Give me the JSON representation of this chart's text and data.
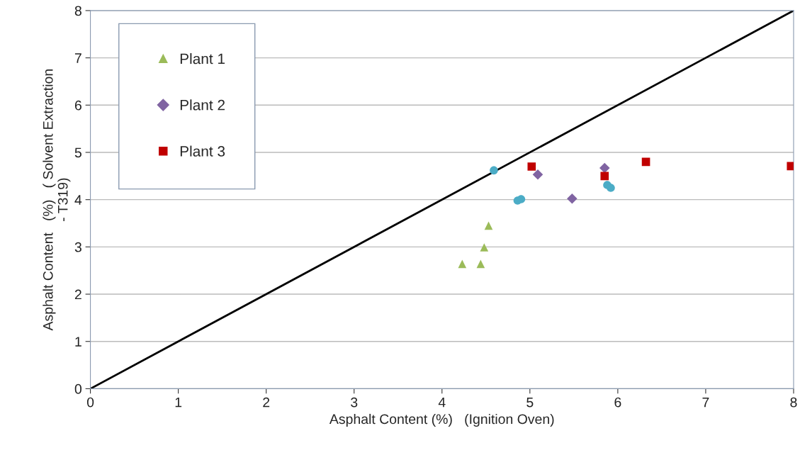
{
  "chart_data": {
    "type": "scatter",
    "xlabel": "Asphalt Content (%)   (Ignition Oven)",
    "ylabel": "Asphalt Content   (%)   ( Solvent Extraction\n- T319)",
    "xlim": [
      0,
      8
    ],
    "ylim": [
      0,
      8
    ],
    "xticks": [
      0,
      1,
      2,
      3,
      4,
      5,
      6,
      7,
      8
    ],
    "yticks": [
      0,
      1,
      2,
      3,
      4,
      5,
      6,
      7,
      8
    ],
    "grid": "y",
    "legend": "top left",
    "series": [
      {
        "name": "Plant 1",
        "color": "#9bbb59",
        "marker": "triangle",
        "x": [
          4.23,
          4.44,
          4.48,
          4.53
        ],
        "values": [
          2.64,
          2.64,
          2.99,
          3.45
        ]
      },
      {
        "name": "Plant 2",
        "color": "#8064a2",
        "marker": "diamond",
        "x": [
          5.09,
          5.48,
          5.85
        ],
        "values": [
          4.53,
          4.02,
          4.67
        ]
      },
      {
        "name": "Plant 3",
        "color": "#c00000",
        "marker": "square",
        "x": [
          5.02,
          5.85,
          6.32,
          7.97
        ],
        "values": [
          4.7,
          4.5,
          4.8,
          4.71
        ]
      },
      {
        "color": "#4bacc6",
        "marker": "circle",
        "x": [
          4.59,
          4.86,
          4.9,
          5.88,
          5.92
        ],
        "values": [
          4.62,
          3.98,
          4.01,
          4.31,
          4.25
        ]
      },
      {
        "type": "line",
        "color": "#000000",
        "marker": "none",
        "x": [
          0,
          8
        ],
        "values": [
          0,
          8
        ]
      }
    ]
  }
}
